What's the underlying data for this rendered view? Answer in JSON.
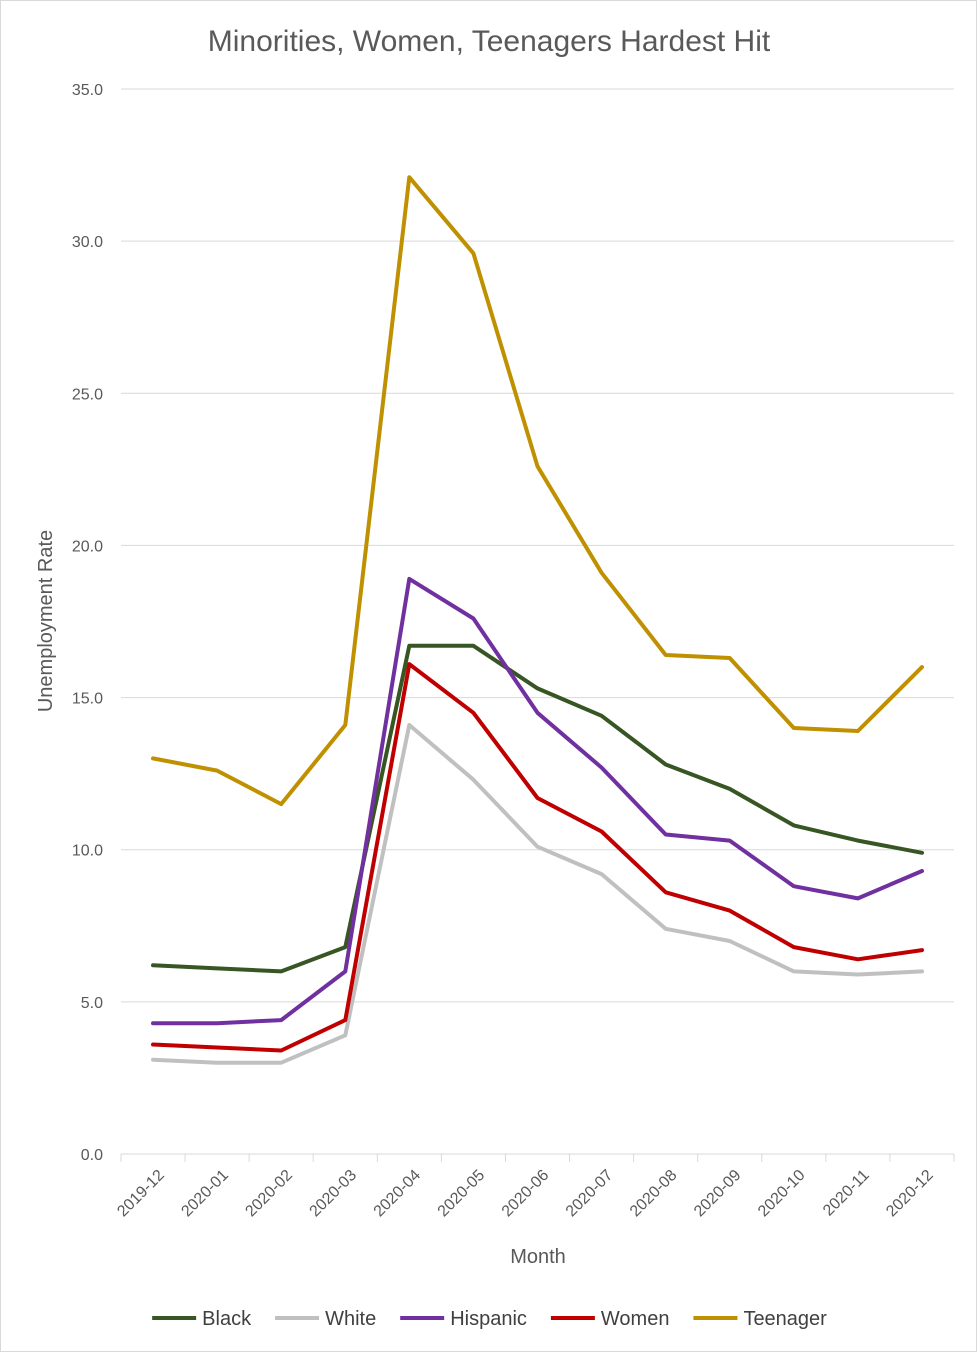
{
  "chart_data": {
    "type": "line",
    "title": "Minorities, Women, Teenagers Hardest Hit",
    "xlabel": "Month",
    "ylabel": "Unemployment Rate",
    "ylim": [
      0,
      35
    ],
    "y_ticks": [
      "0.0",
      "5.0",
      "10.0",
      "15.0",
      "20.0",
      "25.0",
      "30.0",
      "35.0"
    ],
    "y_tick_values": [
      0,
      5,
      10,
      15,
      20,
      25,
      30,
      35
    ],
    "categories": [
      "2019-12",
      "2020-01",
      "2020-02",
      "2020-03",
      "2020-04",
      "2020-05",
      "2020-06",
      "2020-07",
      "2020-08",
      "2020-09",
      "2020-10",
      "2020-11",
      "2020-12"
    ],
    "grid": "horizontal",
    "legend_position": "bottom",
    "series": [
      {
        "name": "Black",
        "color": "#375623",
        "values": [
          6.2,
          6.1,
          6.0,
          6.8,
          16.7,
          16.7,
          15.3,
          14.4,
          12.8,
          12.0,
          10.8,
          10.3,
          9.9
        ]
      },
      {
        "name": "White",
        "color": "#c0c0c0",
        "values": [
          3.1,
          3.0,
          3.0,
          3.9,
          14.1,
          12.3,
          10.1,
          9.2,
          7.4,
          7.0,
          6.0,
          5.9,
          6.0
        ]
      },
      {
        "name": "Hispanic",
        "color": "#7030a0",
        "values": [
          4.3,
          4.3,
          4.4,
          6.0,
          18.9,
          17.6,
          14.5,
          12.7,
          10.5,
          10.3,
          8.8,
          8.4,
          9.3
        ]
      },
      {
        "name": "Women",
        "color": "#c00000",
        "values": [
          3.6,
          3.5,
          3.4,
          4.4,
          16.1,
          14.5,
          11.7,
          10.6,
          8.6,
          8.0,
          6.8,
          6.4,
          6.7
        ]
      },
      {
        "name": "Teenager",
        "color": "#bf9000",
        "values": [
          13.0,
          12.6,
          11.5,
          14.1,
          32.1,
          29.6,
          22.6,
          19.1,
          16.4,
          16.3,
          14.0,
          13.9,
          16.0
        ]
      }
    ]
  }
}
